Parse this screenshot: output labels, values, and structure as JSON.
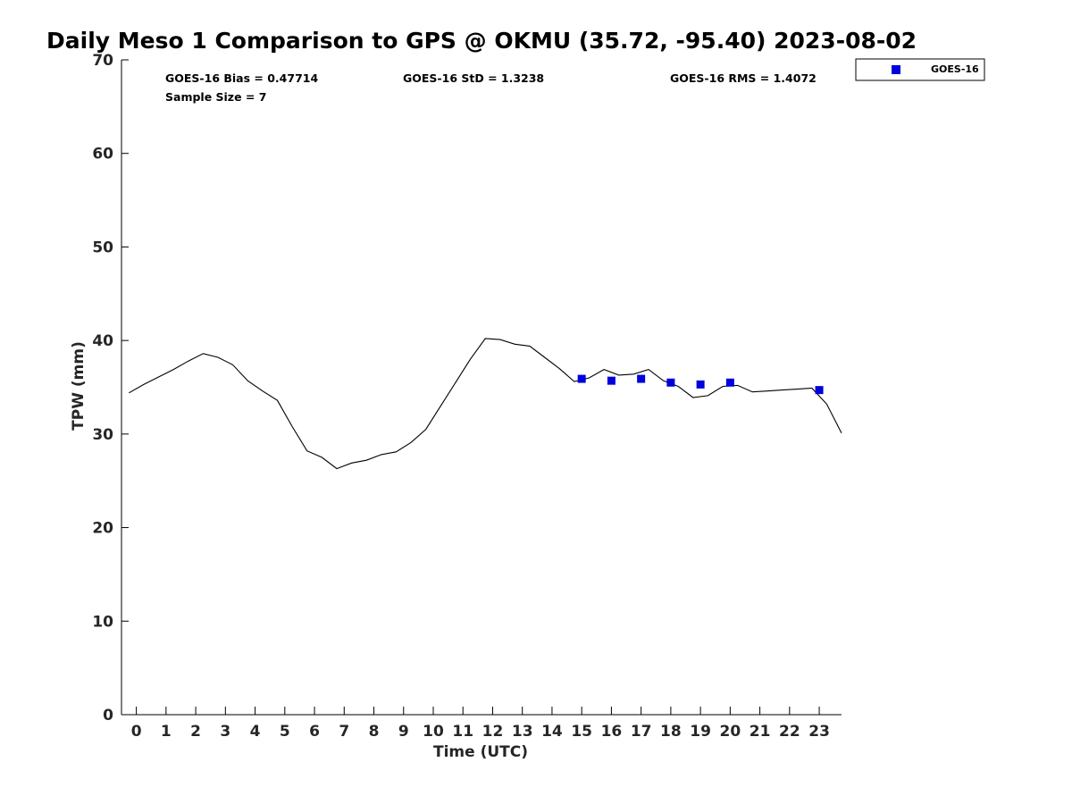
{
  "chart_data": {
    "type": "line",
    "title": "Daily Meso 1 Comparison to GPS @ OKMU (35.72, -95.40) 2023-08-02",
    "xlabel": "Time (UTC)",
    "ylabel": "TPW (mm)",
    "xlim": [
      -0.5,
      23.75
    ],
    "ylim": [
      0,
      70
    ],
    "xticks": [
      0,
      1,
      2,
      3,
      4,
      5,
      6,
      7,
      8,
      9,
      10,
      11,
      12,
      13,
      14,
      15,
      16,
      17,
      18,
      19,
      20,
      21,
      22,
      23
    ],
    "yticks": [
      0,
      10,
      20,
      30,
      40,
      50,
      60,
      70
    ],
    "grid": false,
    "legend_position": "outside-top-right",
    "stats": {
      "bias": "GOES-16 Bias = 0.47714",
      "std": "GOES-16 StD = 1.3238",
      "rms": "GOES-16 RMS = 1.4072",
      "sample": "Sample Size = 7"
    },
    "series": [
      {
        "kind": "line",
        "color": "#000000",
        "x": [
          -0.25,
          0.25,
          0.75,
          1.25,
          1.75,
          2.25,
          2.75,
          3.25,
          3.75,
          4.25,
          4.75,
          5.25,
          5.75,
          6.25,
          6.75,
          7.25,
          7.75,
          8.25,
          8.75,
          9.25,
          9.75,
          10.25,
          10.75,
          11.25,
          11.75,
          12.25,
          12.75,
          13.25,
          13.75,
          14.25,
          14.75,
          15.25,
          15.75,
          16.25,
          16.75,
          17.25,
          17.75,
          18.25,
          18.75,
          19.25,
          19.75,
          20.25,
          20.75,
          21.25,
          21.75,
          22.25,
          22.75,
          23.25,
          23.75
        ],
        "values": [
          34.4,
          35.3,
          36.1,
          36.9,
          37.8,
          38.6,
          38.2,
          37.4,
          35.7,
          34.6,
          33.6,
          30.8,
          28.2,
          27.5,
          26.3,
          26.9,
          27.2,
          27.8,
          28.1,
          29.1,
          30.5,
          33.0,
          35.5,
          38.0,
          40.2,
          40.1,
          39.6,
          39.4,
          38.2,
          37.0,
          35.6,
          36.0,
          36.9,
          36.3,
          36.4,
          36.9,
          35.7,
          35.1,
          33.9,
          34.1,
          35.1,
          35.2,
          34.5,
          34.6,
          34.7,
          34.8,
          34.9,
          33.2,
          30.1
        ]
      },
      {
        "name": "GOES-16",
        "kind": "scatter",
        "marker": "square",
        "color": "#0000dd",
        "x": [
          15,
          16,
          17,
          18,
          19,
          20,
          23
        ],
        "values": [
          35.9,
          35.7,
          35.9,
          35.5,
          35.3,
          35.5,
          34.7
        ]
      }
    ]
  }
}
